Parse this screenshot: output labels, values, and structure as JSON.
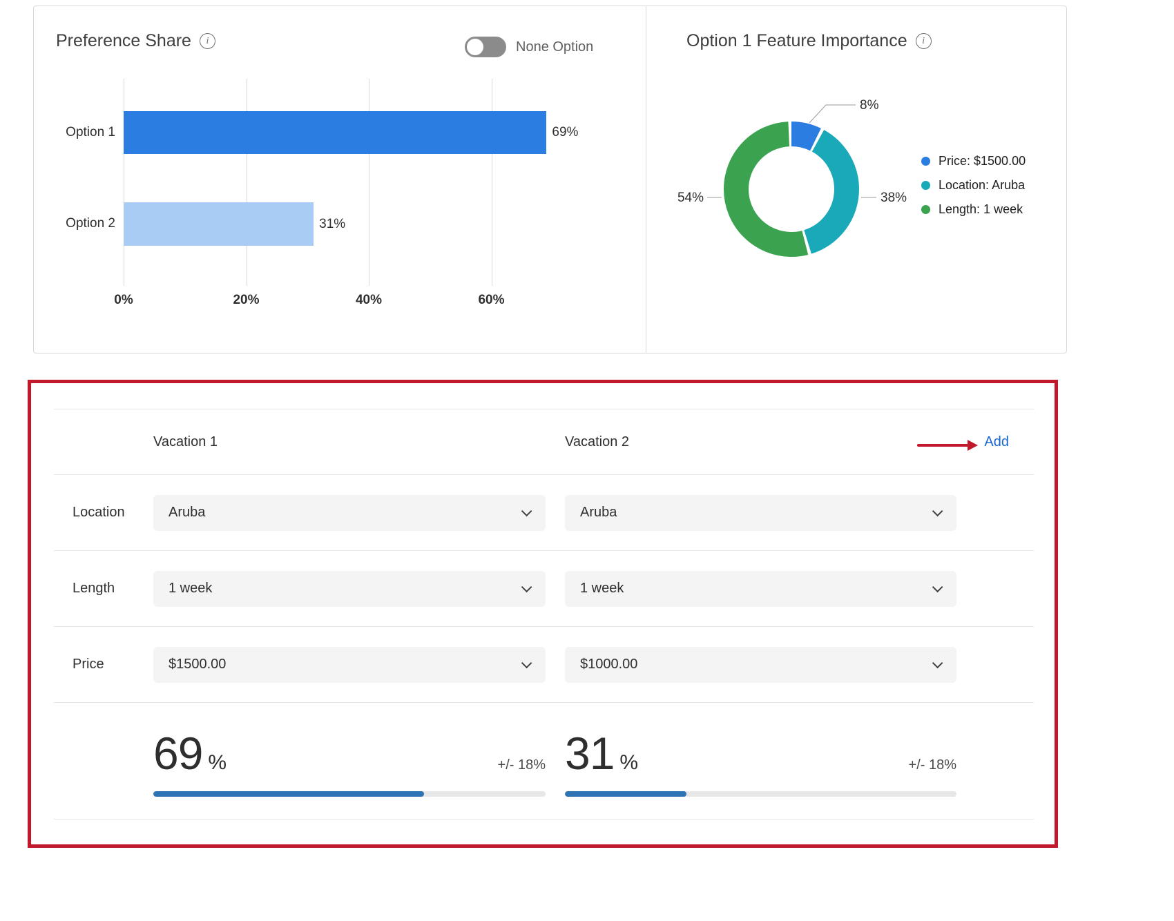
{
  "preference_share": {
    "title": "Preference Share",
    "none_option_label": "None Option"
  },
  "feature_importance": {
    "title": "Option 1 Feature Importance"
  },
  "chart_data": [
    {
      "type": "bar",
      "orientation": "horizontal",
      "title": "Preference Share",
      "categories": [
        "Option 1",
        "Option 2"
      ],
      "values": [
        69,
        31
      ],
      "value_labels": [
        "69%",
        "31%"
      ],
      "xticks": [
        "0%",
        "20%",
        "40%",
        "60%"
      ],
      "xlim": [
        0,
        80
      ],
      "bar_colors": [
        "#2b7de1",
        "#a9ccf4"
      ],
      "grid": true,
      "legend_position": "none"
    },
    {
      "type": "pie",
      "title": "Option 1 Feature Importance",
      "donut": true,
      "slices": [
        {
          "label": "Price: $1500.00",
          "pct_label": "8%",
          "value": 8,
          "color": "#2b7de1"
        },
        {
          "label": "Location: Aruba",
          "pct_label": "38%",
          "value": 38,
          "color": "#19a9b8"
        },
        {
          "label": "Length: 1 week",
          "pct_label": "54%",
          "value": 54,
          "color": "#3ba34f"
        }
      ],
      "legend_position": "right"
    }
  ],
  "comparison": {
    "header": {
      "col1": "Vacation 1",
      "col2": "Vacation 2",
      "add_label": "Add"
    },
    "rows": [
      {
        "label": "Location",
        "v1": "Aruba",
        "v2": "Aruba"
      },
      {
        "label": "Length",
        "v1": "1 week",
        "v2": "1 week"
      },
      {
        "label": "Price",
        "v1": "$1500.00",
        "v2": "$1000.00"
      }
    ],
    "results": [
      {
        "value": "69",
        "unit": "%",
        "margin": "+/- 18%",
        "percent": 69
      },
      {
        "value": "31",
        "unit": "%",
        "margin": "+/- 18%",
        "percent": 31
      }
    ]
  },
  "colors": {
    "bar_primary": "#2b7de1",
    "bar_secondary": "#a9ccf4",
    "teal": "#19a9b8",
    "green": "#3ba34f",
    "progress_blue": "#2e74b5",
    "annotation_red": "#c2182b",
    "link_blue": "#1766d1"
  }
}
